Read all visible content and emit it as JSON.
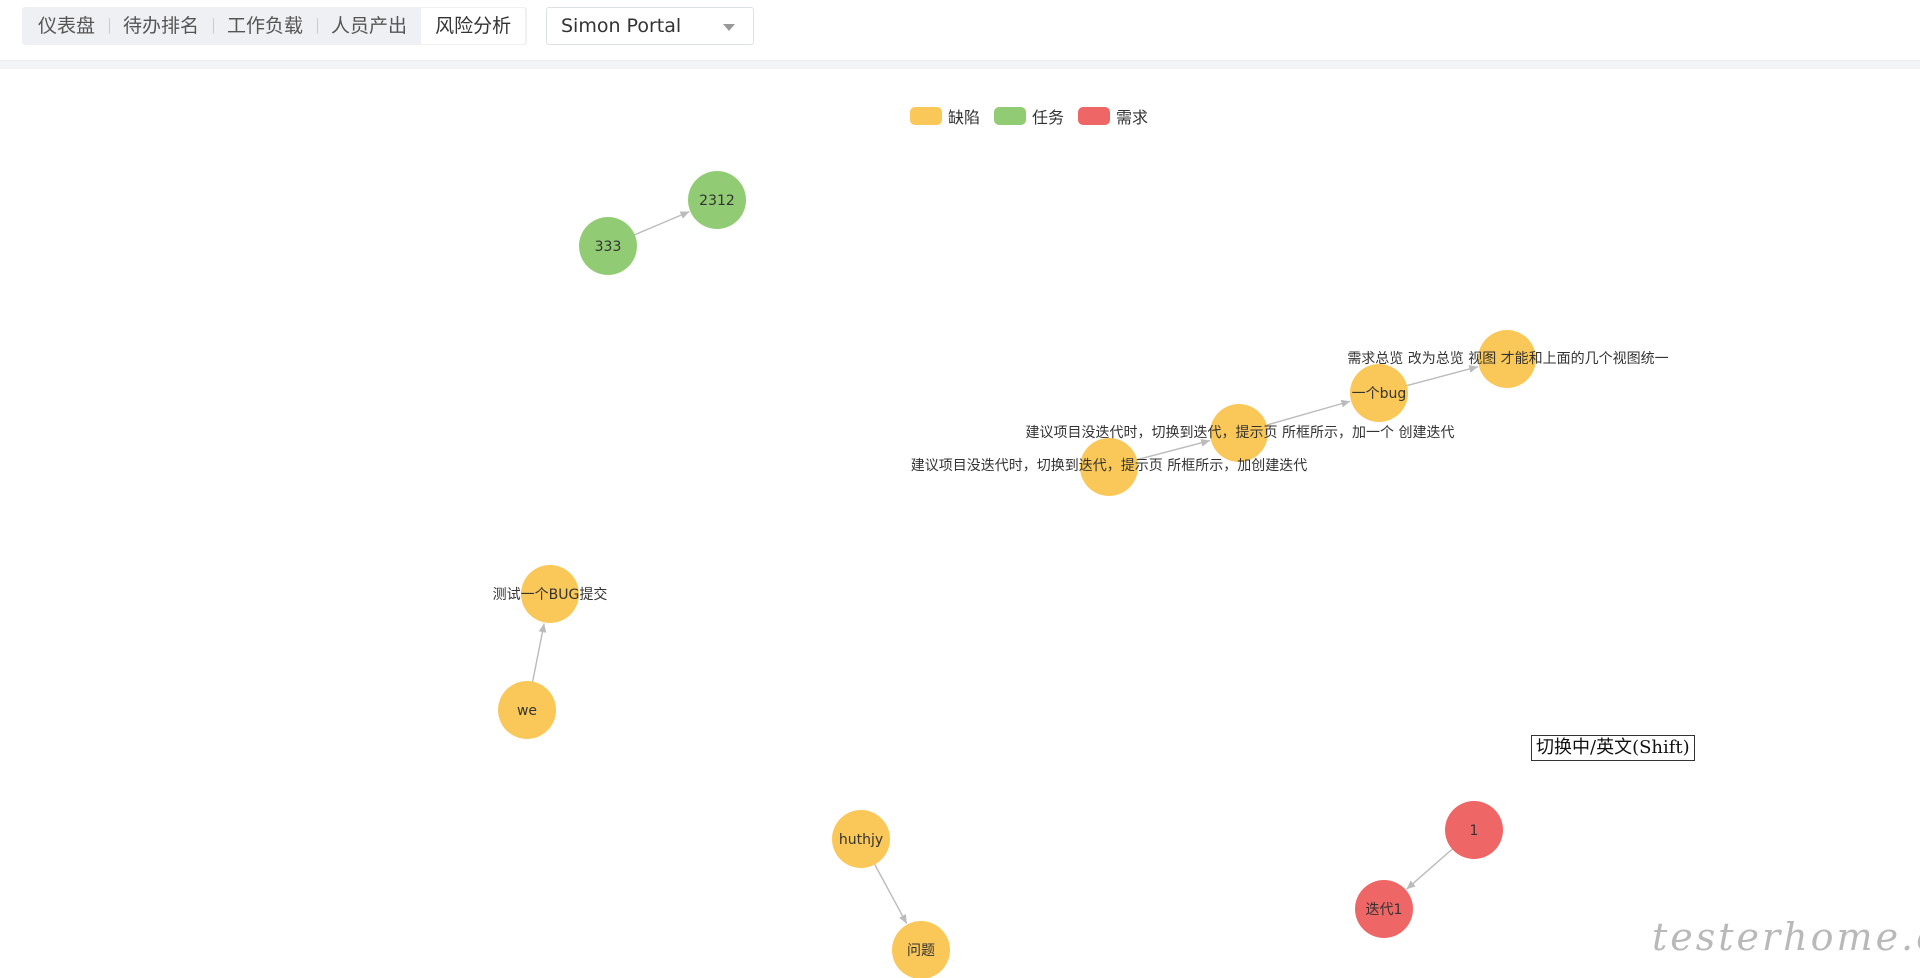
{
  "tabs": [
    {
      "label": "仪表盘",
      "active": false
    },
    {
      "label": "待办排名",
      "active": false
    },
    {
      "label": "工作负载",
      "active": false
    },
    {
      "label": "人员产出",
      "active": false
    },
    {
      "label": "风险分析",
      "active": true
    }
  ],
  "project_select": {
    "value": "Simon Portal",
    "icon": "chevron-down-icon"
  },
  "legend": [
    {
      "label": "缺陷",
      "color": "#fac858"
    },
    {
      "label": "任务",
      "color": "#91cc75"
    },
    {
      "label": "需求",
      "color": "#ee6666"
    }
  ],
  "graph": {
    "nodes": [
      {
        "id": "n333",
        "label": "333",
        "category": "任务"
      },
      {
        "id": "n2312",
        "label": "2312",
        "category": "任务"
      },
      {
        "id": "nA",
        "label": "",
        "category": "缺陷"
      },
      {
        "id": "nB",
        "label": "",
        "category": "缺陷"
      },
      {
        "id": "nC",
        "label": "一个bug",
        "category": "缺陷"
      },
      {
        "id": "nD",
        "label": "",
        "category": "缺陷"
      },
      {
        "id": "nBugSubmit",
        "label": "测试一个BUG提交",
        "category": "缺陷"
      },
      {
        "id": "nWe",
        "label": "we",
        "category": "缺陷"
      },
      {
        "id": "nHuthjy",
        "label": "huthjy",
        "category": "缺陷"
      },
      {
        "id": "nWenti",
        "label": "问题",
        "category": "缺陷"
      },
      {
        "id": "n1",
        "label": "1",
        "category": "需求"
      },
      {
        "id": "nDiedai",
        "label": "迭代1",
        "category": "需求"
      }
    ],
    "floating_labels": [
      "需求总览 改为总览 视图 才能和上面的几个视图统一",
      "建议项目没迭代时，切换到迭代，提示页 所框所示，加一个 创建迭代",
      "建议项目没迭代时，切换到迭代，提示页 所框所示，加创建迭代"
    ],
    "links": [
      {
        "source": "n333",
        "target": "n2312"
      },
      {
        "source": "nA",
        "target": "nB"
      },
      {
        "source": "nB",
        "target": "nC"
      },
      {
        "source": "nC",
        "target": "nD"
      },
      {
        "source": "nWe",
        "target": "nBugSubmit"
      },
      {
        "source": "nHuthjy",
        "target": "nWenti"
      },
      {
        "source": "n1",
        "target": "nDiedai"
      }
    ]
  },
  "ime_tooltip": "切换中/英文(Shift)",
  "watermark": "testerhome.com"
}
